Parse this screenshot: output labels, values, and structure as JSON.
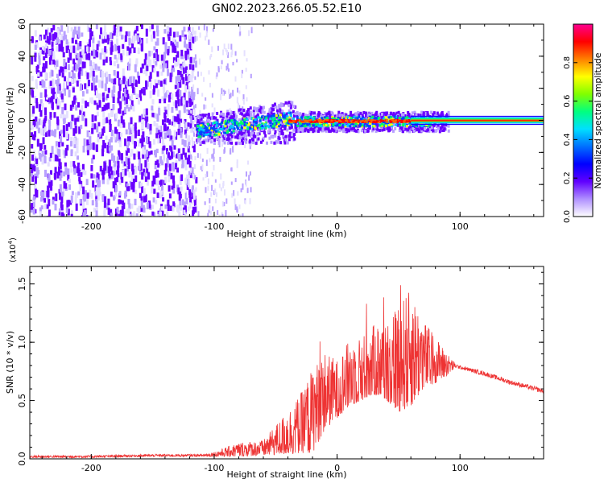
{
  "title": "GN02.2023.266.05.52.E10",
  "colors": {
    "snr_line": "#ee3333",
    "colormap": [
      "#e5e0ff",
      "#b8a0ff",
      "#6a00ff",
      "#1a00ff",
      "#0044ff",
      "#00c8ff",
      "#00ff66",
      "#ffff00",
      "#ff6a00",
      "#ff0000",
      "#ff0080"
    ]
  },
  "chart_data": [
    {
      "type": "heatmap",
      "name": "spectrogram",
      "xlabel": "Height of straight line (km)",
      "ylabel": "Frequency (Hz)",
      "xlim": [
        -250,
        168
      ],
      "ylim": [
        -60,
        60
      ],
      "xticks": [
        -200,
        -100,
        0,
        100
      ],
      "yticks": [
        60,
        40,
        20,
        0,
        -20,
        -40,
        -60
      ],
      "description_regions": {
        "noise_band_x": [
          -250,
          -115
        ],
        "signal_onset_x": -115,
        "constant_line_x": [
          60,
          168
        ],
        "center_frequency": 0
      },
      "colorbar": {
        "label": "Normalized spectral amplitude",
        "range": [
          0.0,
          1.0
        ],
        "ticks": [
          "0.0",
          "0.2",
          "0.4",
          "0.6",
          "0.8"
        ]
      }
    },
    {
      "type": "line",
      "name": "snr",
      "xlabel": "Height of straight line (km)",
      "ylabel": "SNR (10 * v/v)",
      "scale_label": "(x10",
      "scale_exp": "4",
      "scale_close": ")",
      "xlim": [
        -250,
        168
      ],
      "ylim": [
        0,
        1.65
      ],
      "xticks": [
        -200,
        -100,
        0,
        100
      ],
      "yticks": [
        "0.0",
        "0.5",
        "1.0",
        "1.5"
      ],
      "ytick_values": [
        0,
        0.5,
        1.0,
        1.5
      ],
      "envelope": {
        "x": [
          -250,
          -200,
          -150,
          -110,
          -100,
          -80,
          -60,
          -40,
          -30,
          -20,
          -10,
          0,
          10,
          20,
          30,
          40,
          50,
          60,
          70,
          80,
          90,
          96,
          100,
          120,
          140,
          168
        ],
        "upper": [
          0.03,
          0.03,
          0.04,
          0.04,
          0.06,
          0.14,
          0.16,
          0.42,
          0.55,
          0.78,
          0.92,
          0.85,
          1.02,
          1.05,
          1.15,
          1.2,
          1.35,
          1.45,
          1.2,
          1.05,
          0.9,
          0.82,
          0.8,
          0.75,
          0.68,
          0.6
        ],
        "lower": [
          0.01,
          0.01,
          0.02,
          0.02,
          0.02,
          0.02,
          0.03,
          0.04,
          0.05,
          0.05,
          0.25,
          0.35,
          0.45,
          0.5,
          0.55,
          0.5,
          0.4,
          0.45,
          0.6,
          0.65,
          0.72,
          0.78,
          0.77,
          0.71,
          0.64,
          0.56
        ]
      }
    }
  ]
}
